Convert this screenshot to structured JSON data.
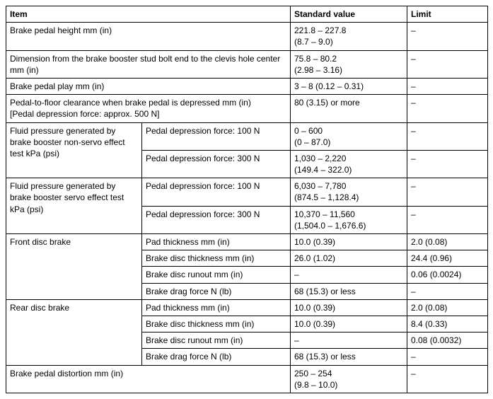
{
  "headers": {
    "item": "Item",
    "std": "Standard value",
    "limit": "Limit"
  },
  "dash": "–",
  "r1": {
    "item": "Brake pedal height mm (in)",
    "std": "221.8 – 227.8\n(8.7 – 9.0)"
  },
  "r2": {
    "item": "Dimension from the brake booster stud bolt end to the clevis hole center mm (in)",
    "std": "75.8 – 80.2\n(2.98 – 3.16)"
  },
  "r3": {
    "item": "Brake pedal play mm (in)",
    "std": "3 – 8 (0.12 – 0.31)"
  },
  "r4": {
    "item": "Pedal-to-floor clearance when brake pedal is depressed mm (in)\n[Pedal depression force: approx. 500 N]",
    "std": "80 (3.15) or more"
  },
  "r5": {
    "item": "Fluid pressure generated by brake booster non-servo effect test kPa (psi)",
    "sub": "Pedal depression force: 100 N",
    "std": "0 – 600\n(0 – 87.0)"
  },
  "r6": {
    "sub": "Pedal depression force: 300 N",
    "std": "1,030 – 2,220\n(149.4 – 322.0)"
  },
  "r7": {
    "item": "Fluid pressure generated by brake booster servo effect test kPa (psi)",
    "sub": "Pedal depression force: 100 N",
    "std": "6,030 – 7,780\n(874.5 – 1,128.4)"
  },
  "r8": {
    "sub": "Pedal depression force: 300 N",
    "std": "10,370 – 11,560\n(1,504.0 – 1,676.6)"
  },
  "r9": {
    "item": "Front disc brake",
    "sub": "Pad thickness mm (in)",
    "std": "10.0 (0.39)",
    "limit": "2.0 (0.08)"
  },
  "r10": {
    "sub": "Brake disc thickness mm (in)",
    "std": "26.0 (1.02)",
    "limit": "24.4 (0.96)"
  },
  "r11": {
    "sub": "Brake disc runout mm (in)",
    "std": "–",
    "limit": "0.06 (0.0024)"
  },
  "r12": {
    "sub": "Brake drag force N (lb)",
    "std": "68 (15.3) or less"
  },
  "r13": {
    "item": "Rear disc brake",
    "sub": "Pad thickness mm (in)",
    "std": "10.0 (0.39)",
    "limit": "2.0 (0.08)"
  },
  "r14": {
    "sub": "Brake disc thickness mm (in)",
    "std": "10.0 (0.39)",
    "limit": "8.4 (0.33)"
  },
  "r15": {
    "sub": "Brake disc runout mm (in)",
    "std": "–",
    "limit": "0.08 (0.0032)"
  },
  "r16": {
    "sub": "Brake drag force N (lb)",
    "std": "68 (15.3) or less"
  },
  "r17": {
    "item": "Brake pedal distortion mm (in)",
    "std": "250 – 254\n(9.8 – 10.0)"
  }
}
